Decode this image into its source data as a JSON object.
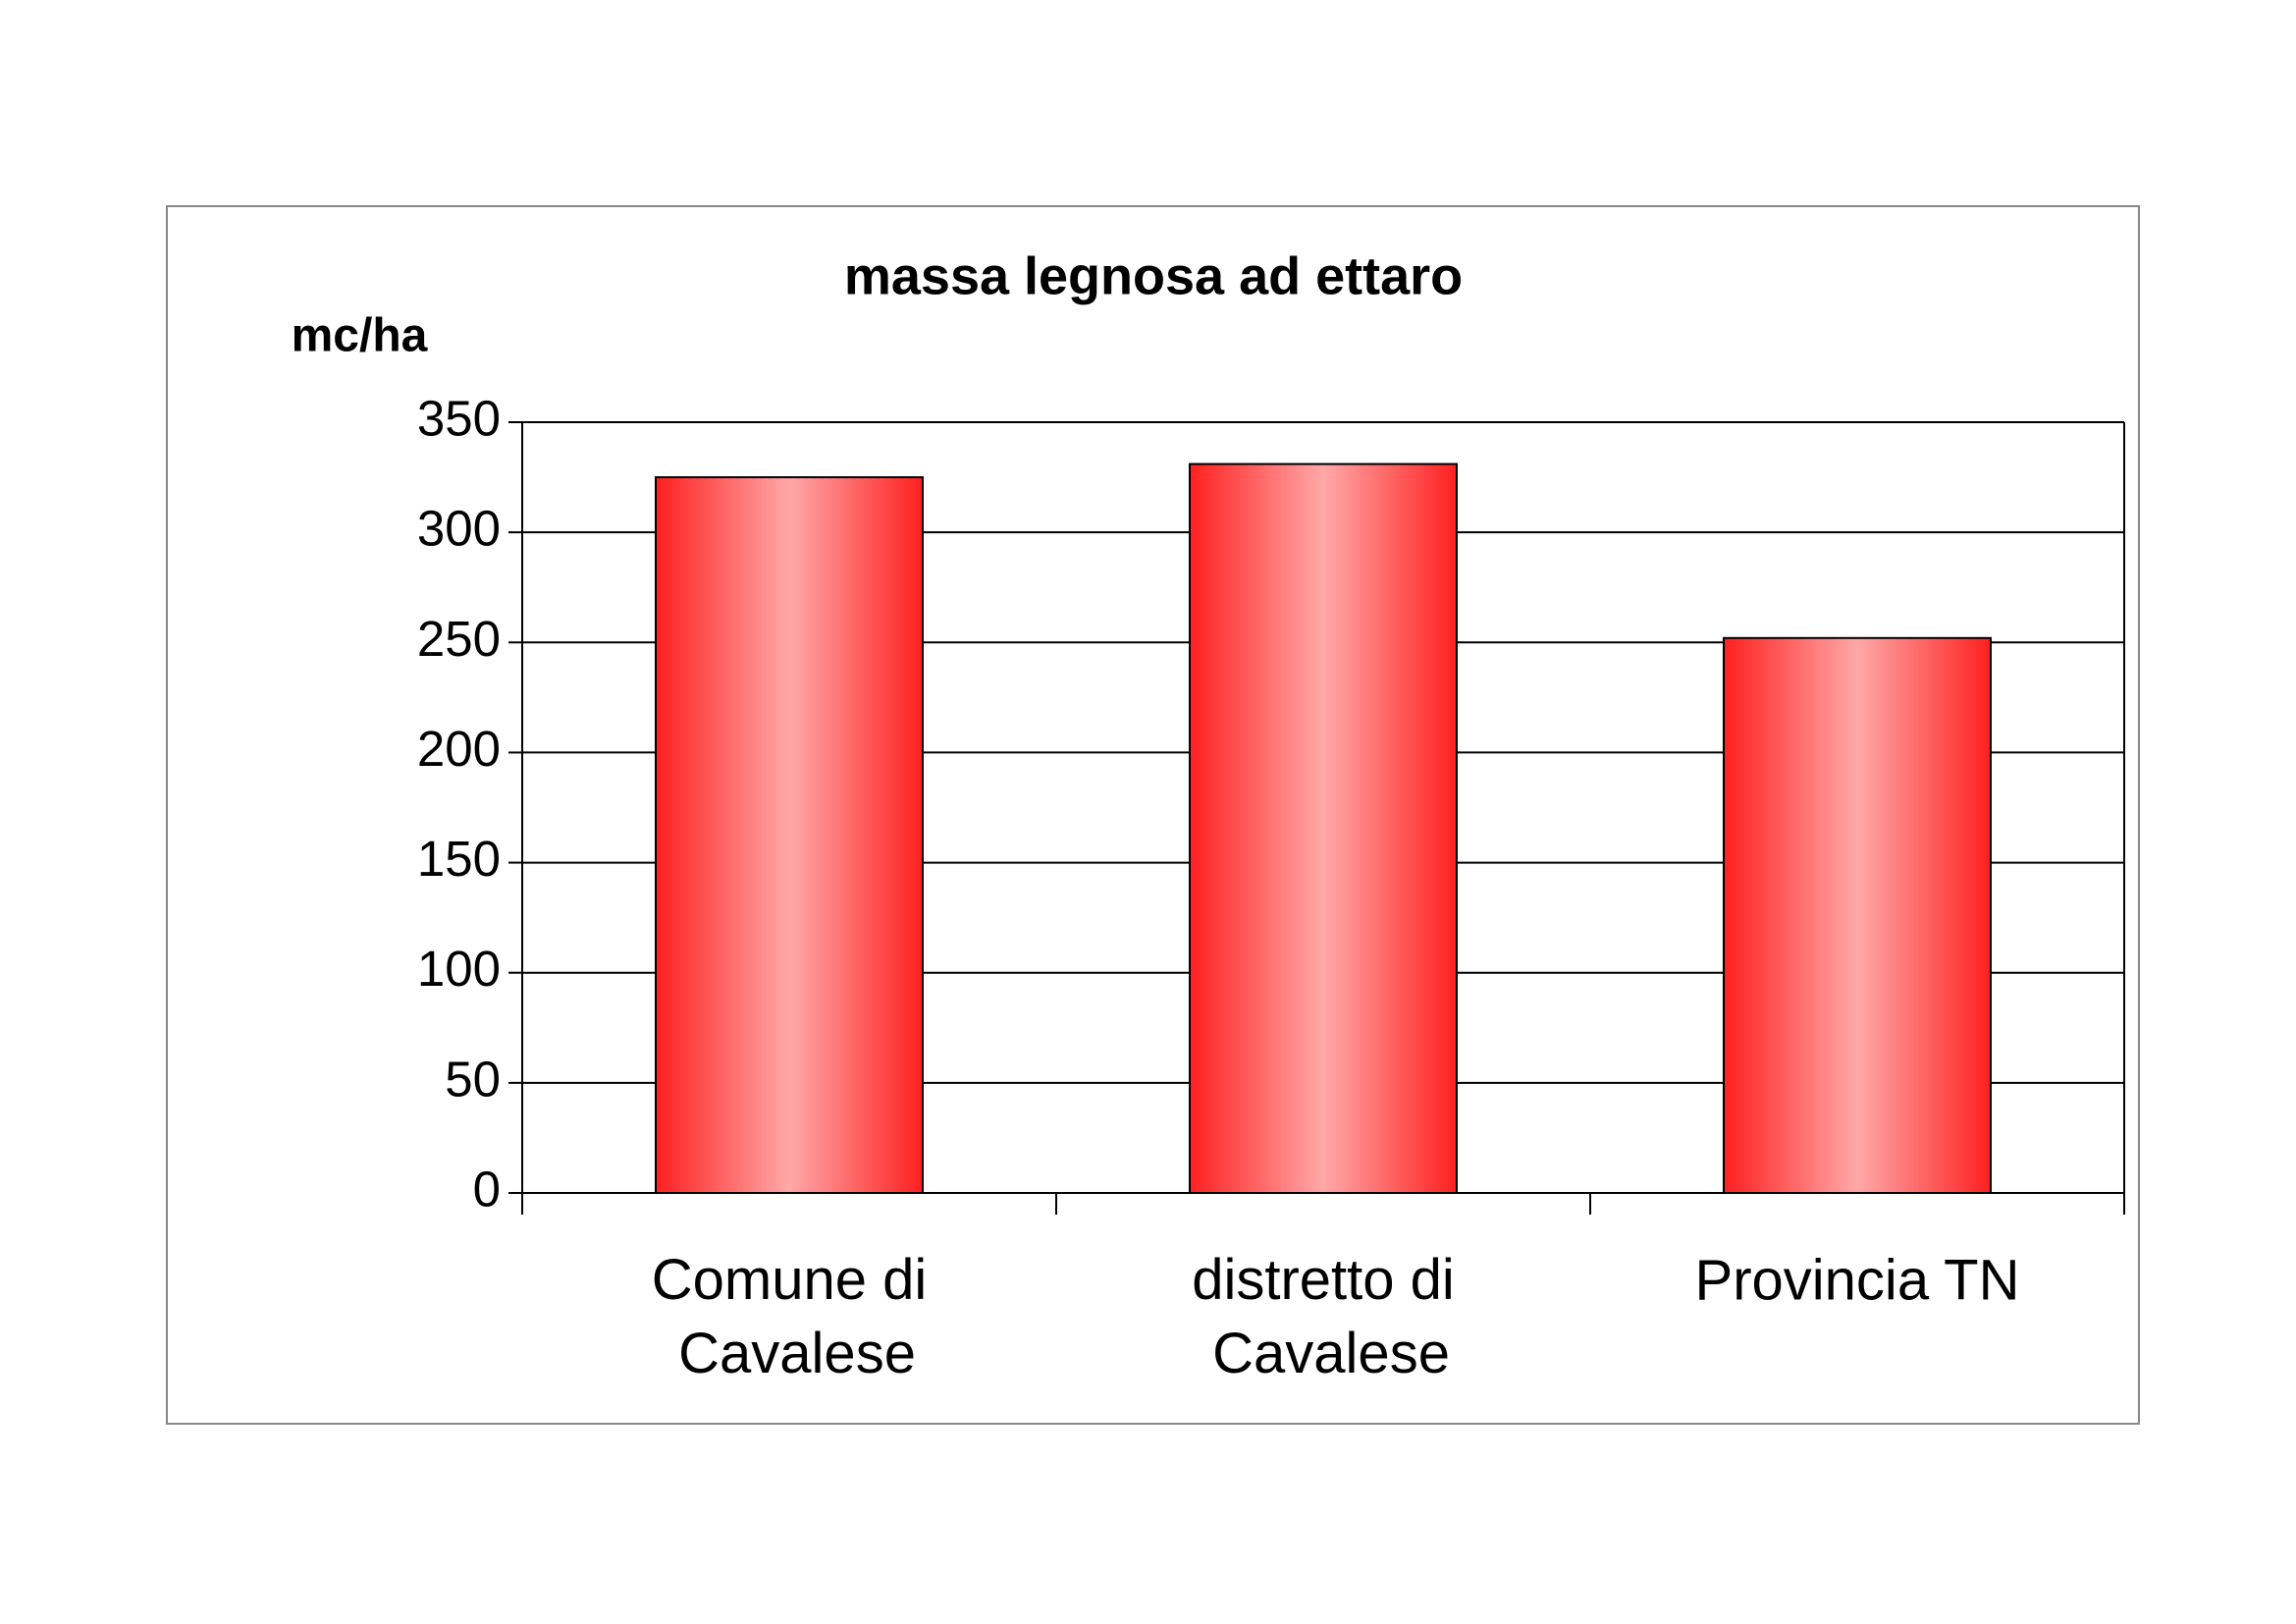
{
  "chart_data": {
    "type": "bar",
    "title": "massa legnosa ad ettaro",
    "y_label": "mc/ha",
    "categories": [
      "Comune di Cavalese",
      "distretto di Cavalese",
      "Provincia TN"
    ],
    "values": [
      325,
      331,
      252
    ],
    "color": "#ff2020",
    "ylim": [
      0,
      350
    ],
    "yticks": [
      0,
      50,
      100,
      150,
      200,
      250,
      300,
      350
    ],
    "grid": true
  }
}
